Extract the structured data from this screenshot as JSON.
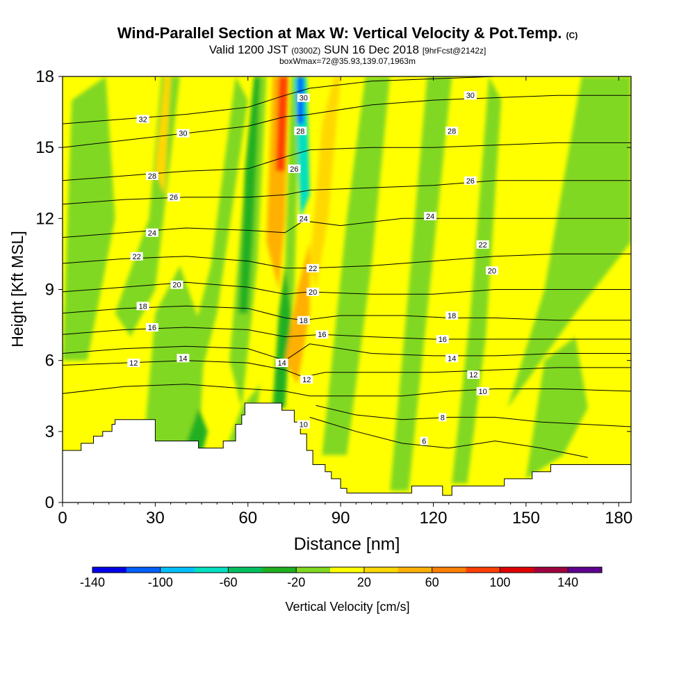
{
  "title": {
    "main": "Wind-Parallel Section at Max W: Vertical Velocity & Pot.Temp.",
    "copyright": "(C)",
    "valid_prefix": "Valid 1200 JST",
    "valid_utc": "(0300Z)",
    "valid_date": "SUN 16 Dec 2018",
    "forecast": "[9hrFcst@2142z]",
    "boxinfo": "boxWmax=72@35.93,139.07,1963m"
  },
  "chart_data": {
    "type": "heatmap",
    "xlabel": "Distance [nm]",
    "ylabel": "Height [Kft MSL]",
    "x_range": [
      0,
      184
    ],
    "y_range": [
      0,
      18
    ],
    "x_ticks": [
      0,
      30,
      60,
      90,
      120,
      150,
      180
    ],
    "y_ticks": [
      0,
      3,
      6,
      9,
      12,
      15,
      18
    ],
    "terrain": [
      [
        0,
        2.2
      ],
      [
        6,
        2.2
      ],
      [
        6,
        2.5
      ],
      [
        10,
        2.5
      ],
      [
        10,
        2.8
      ],
      [
        13,
        2.8
      ],
      [
        13,
        3.0
      ],
      [
        16,
        3.0
      ],
      [
        16,
        3.3
      ],
      [
        17,
        3.3
      ],
      [
        17,
        3.5
      ],
      [
        30,
        3.5
      ],
      [
        30,
        2.6
      ],
      [
        44,
        2.6
      ],
      [
        44,
        2.3
      ],
      [
        52,
        2.3
      ],
      [
        52,
        2.6
      ],
      [
        56,
        2.6
      ],
      [
        56,
        3.3
      ],
      [
        58,
        3.3
      ],
      [
        58,
        3.7
      ],
      [
        59,
        3.7
      ],
      [
        59,
        4.2
      ],
      [
        71,
        4.2
      ],
      [
        71,
        3.9
      ],
      [
        75,
        3.9
      ],
      [
        75,
        3.4
      ],
      [
        77,
        3.4
      ],
      [
        77,
        2.9
      ],
      [
        79,
        2.9
      ],
      [
        79,
        2.2
      ],
      [
        81,
        2.2
      ],
      [
        81,
        1.6
      ],
      [
        85,
        1.6
      ],
      [
        85,
        1.3
      ],
      [
        87,
        1.3
      ],
      [
        87,
        1.0
      ],
      [
        90,
        1.0
      ],
      [
        90,
        0.6
      ],
      [
        92,
        0.6
      ],
      [
        92,
        0.4
      ],
      [
        113,
        0.4
      ],
      [
        113,
        0.7
      ],
      [
        123,
        0.7
      ],
      [
        123,
        0.3
      ],
      [
        126,
        0.3
      ],
      [
        126,
        0.7
      ],
      [
        143,
        0.7
      ],
      [
        143,
        1.0
      ],
      [
        152,
        1.0
      ],
      [
        152,
        1.3
      ],
      [
        158,
        1.3
      ],
      [
        158,
        1.6
      ],
      [
        184,
        1.6
      ]
    ],
    "theta_contours": [
      {
        "value": 6,
        "label": "6",
        "x": 117,
        "y": 2.6,
        "points": [
          [
            80,
            3.6
          ],
          [
            95,
            3.0
          ],
          [
            110,
            2.5
          ],
          [
            125,
            2.3
          ],
          [
            140,
            2.6
          ],
          [
            155,
            2.3
          ],
          [
            170,
            1.9
          ]
        ]
      },
      {
        "value": 8,
        "label": "8",
        "x": 123,
        "y": 3.6,
        "points": [
          [
            82,
            4.1
          ],
          [
            95,
            3.7
          ],
          [
            110,
            3.5
          ],
          [
            125,
            3.6
          ],
          [
            140,
            3.6
          ],
          [
            155,
            3.4
          ],
          [
            184,
            3.2
          ]
        ]
      },
      {
        "value": 10,
        "label": "10",
        "x": 78,
        "y": 3.3,
        "points": [
          [
            0,
            4.6
          ],
          [
            20,
            4.9
          ],
          [
            40,
            5.0
          ],
          [
            60,
            4.8
          ],
          [
            72,
            4.7
          ],
          [
            80,
            4.5
          ],
          [
            95,
            4.5
          ],
          [
            110,
            4.5
          ],
          [
            125,
            4.7
          ],
          [
            140,
            4.8
          ],
          [
            160,
            4.8
          ],
          [
            184,
            4.7
          ]
        ]
      },
      {
        "value": 12,
        "label": "12",
        "x": 23,
        "y": 5.9,
        "points": [
          [
            0,
            5.8
          ],
          [
            20,
            5.9
          ],
          [
            40,
            6.0
          ],
          [
            60,
            5.9
          ],
          [
            72,
            5.6
          ],
          [
            78,
            5.3
          ],
          [
            85,
            5.5
          ],
          [
            100,
            5.5
          ],
          [
            120,
            5.5
          ],
          [
            140,
            5.6
          ],
          [
            160,
            5.7
          ],
          [
            184,
            5.7
          ]
        ]
      },
      {
        "value": 14,
        "label": "14",
        "x": 39,
        "y": 6.1,
        "points": [
          [
            0,
            6.3
          ],
          [
            20,
            6.5
          ],
          [
            40,
            6.6
          ],
          [
            60,
            6.5
          ],
          [
            72,
            6.0
          ],
          [
            80,
            6.7
          ],
          [
            100,
            6.3
          ],
          [
            120,
            6.2
          ],
          [
            140,
            6.2
          ],
          [
            160,
            6.3
          ],
          [
            184,
            6.3
          ]
        ]
      },
      {
        "value": 16,
        "label": "16",
        "x": 29,
        "y": 7.4,
        "points": [
          [
            0,
            7.1
          ],
          [
            20,
            7.3
          ],
          [
            40,
            7.4
          ],
          [
            60,
            7.3
          ],
          [
            72,
            7.0
          ],
          [
            84,
            7.1
          ],
          [
            100,
            7.0
          ],
          [
            120,
            6.9
          ],
          [
            140,
            6.9
          ],
          [
            160,
            6.9
          ],
          [
            184,
            6.9
          ]
        ]
      },
      {
        "value": 18,
        "label": "18",
        "x": 26,
        "y": 8.3,
        "points": [
          [
            0,
            8.0
          ],
          [
            20,
            8.2
          ],
          [
            40,
            8.3
          ],
          [
            60,
            8.2
          ],
          [
            72,
            7.8
          ],
          [
            78,
            7.7
          ],
          [
            90,
            7.9
          ],
          [
            110,
            7.9
          ],
          [
            125,
            7.8
          ],
          [
            140,
            7.8
          ],
          [
            160,
            7.7
          ],
          [
            184,
            7.7
          ]
        ]
      },
      {
        "value": 20,
        "label": "20",
        "x": 37,
        "y": 9.2,
        "points": [
          [
            0,
            8.9
          ],
          [
            20,
            9.1
          ],
          [
            40,
            9.3
          ],
          [
            60,
            9.1
          ],
          [
            72,
            8.8
          ],
          [
            80,
            8.9
          ],
          [
            100,
            8.8
          ],
          [
            120,
            8.8
          ],
          [
            140,
            9.0
          ],
          [
            160,
            9.0
          ],
          [
            184,
            9.0
          ]
        ]
      },
      {
        "value": 22,
        "label": "22",
        "x": 24,
        "y": 10.4,
        "points": [
          [
            0,
            10.1
          ],
          [
            20,
            10.3
          ],
          [
            40,
            10.4
          ],
          [
            60,
            10.2
          ],
          [
            72,
            9.9
          ],
          [
            80,
            9.9
          ],
          [
            100,
            10.0
          ],
          [
            120,
            10.2
          ],
          [
            140,
            10.4
          ],
          [
            160,
            10.5
          ],
          [
            184,
            10.5
          ]
        ]
      },
      {
        "value": 24,
        "label": "24",
        "x": 29,
        "y": 11.4,
        "points": [
          [
            0,
            11.2
          ],
          [
            20,
            11.4
          ],
          [
            40,
            11.6
          ],
          [
            60,
            11.5
          ],
          [
            72,
            11.4
          ],
          [
            78,
            11.9
          ],
          [
            90,
            11.7
          ],
          [
            110,
            12.0
          ],
          [
            130,
            12.0
          ],
          [
            150,
            12.0
          ],
          [
            184,
            12.0
          ]
        ]
      },
      {
        "value": 26,
        "label": "26",
        "x": 36,
        "y": 12.9,
        "points": [
          [
            0,
            12.6
          ],
          [
            20,
            12.8
          ],
          [
            40,
            12.9
          ],
          [
            60,
            12.9
          ],
          [
            72,
            13.0
          ],
          [
            80,
            13.2
          ],
          [
            100,
            13.3
          ],
          [
            120,
            13.4
          ],
          [
            140,
            13.6
          ],
          [
            160,
            13.6
          ],
          [
            184,
            13.6
          ]
        ]
      },
      {
        "value": 28,
        "label": "28",
        "x": 29,
        "y": 13.8,
        "points": [
          [
            0,
            13.6
          ],
          [
            20,
            13.8
          ],
          [
            40,
            14.0
          ],
          [
            60,
            14.1
          ],
          [
            72,
            14.6
          ],
          [
            80,
            14.9
          ],
          [
            100,
            15.0
          ],
          [
            120,
            15.0
          ],
          [
            140,
            15.1
          ],
          [
            160,
            15.2
          ],
          [
            184,
            15.2
          ]
        ]
      },
      {
        "value": 30,
        "label": "30",
        "x": 39,
        "y": 15.6,
        "points": [
          [
            0,
            15.0
          ],
          [
            20,
            15.3
          ],
          [
            40,
            15.6
          ],
          [
            60,
            15.9
          ],
          [
            72,
            16.3
          ],
          [
            80,
            16.4
          ],
          [
            100,
            16.8
          ],
          [
            120,
            17.0
          ],
          [
            140,
            17.1
          ],
          [
            160,
            17.2
          ],
          [
            184,
            17.2
          ]
        ]
      },
      {
        "value": 32,
        "label": "32",
        "x": 26,
        "y": 16.2,
        "points": [
          [
            0,
            16.0
          ],
          [
            20,
            16.2
          ],
          [
            40,
            16.4
          ],
          [
            60,
            16.7
          ],
          [
            72,
            17.2
          ],
          [
            80,
            17.5
          ],
          [
            100,
            17.8
          ],
          [
            120,
            17.9
          ],
          [
            140,
            18.0
          ]
        ]
      }
    ],
    "theta_labels_extra": [
      {
        "label": "30",
        "x": 132,
        "y": 17.2
      },
      {
        "label": "28",
        "x": 126,
        "y": 15.7
      },
      {
        "label": "26",
        "x": 132,
        "y": 13.6
      },
      {
        "label": "24",
        "x": 119,
        "y": 12.1
      },
      {
        "label": "22",
        "x": 136,
        "y": 10.9
      },
      {
        "label": "20",
        "x": 139,
        "y": 9.8
      },
      {
        "label": "18",
        "x": 126,
        "y": 7.9
      },
      {
        "label": "16",
        "x": 123,
        "y": 6.9
      },
      {
        "label": "14",
        "x": 126,
        "y": 6.1
      },
      {
        "label": "12",
        "x": 133,
        "y": 5.4
      },
      {
        "label": "10",
        "x": 136,
        "y": 4.7
      },
      {
        "label": "30",
        "x": 78,
        "y": 17.1
      },
      {
        "label": "28",
        "x": 77,
        "y": 15.7
      },
      {
        "label": "26",
        "x": 75,
        "y": 14.1
      },
      {
        "label": "24",
        "x": 78,
        "y": 12.0
      },
      {
        "label": "22",
        "x": 81,
        "y": 9.9
      },
      {
        "label": "20",
        "x": 81,
        "y": 8.9
      },
      {
        "label": "18",
        "x": 78,
        "y": 7.7
      },
      {
        "label": "16",
        "x": 84,
        "y": 7.1
      },
      {
        "label": "14",
        "x": 71,
        "y": 5.9
      },
      {
        "label": "12",
        "x": 79,
        "y": 5.2
      }
    ],
    "colorbar": {
      "label": "Vertical Velocity [cm/s]",
      "tick_labels": [
        "-140",
        "-100",
        "-60",
        "-20",
        "20",
        "60",
        "100",
        "140"
      ],
      "colors": [
        "#0000e8",
        "#0060ff",
        "#00c0ff",
        "#00e0c0",
        "#00c060",
        "#20b020",
        "#80d820",
        "#ffff00",
        "#ffd800",
        "#ffb000",
        "#ff8000",
        "#ff4000",
        "#e00000",
        "#a00040",
        "#600090"
      ]
    },
    "wmax_value": 72
  }
}
